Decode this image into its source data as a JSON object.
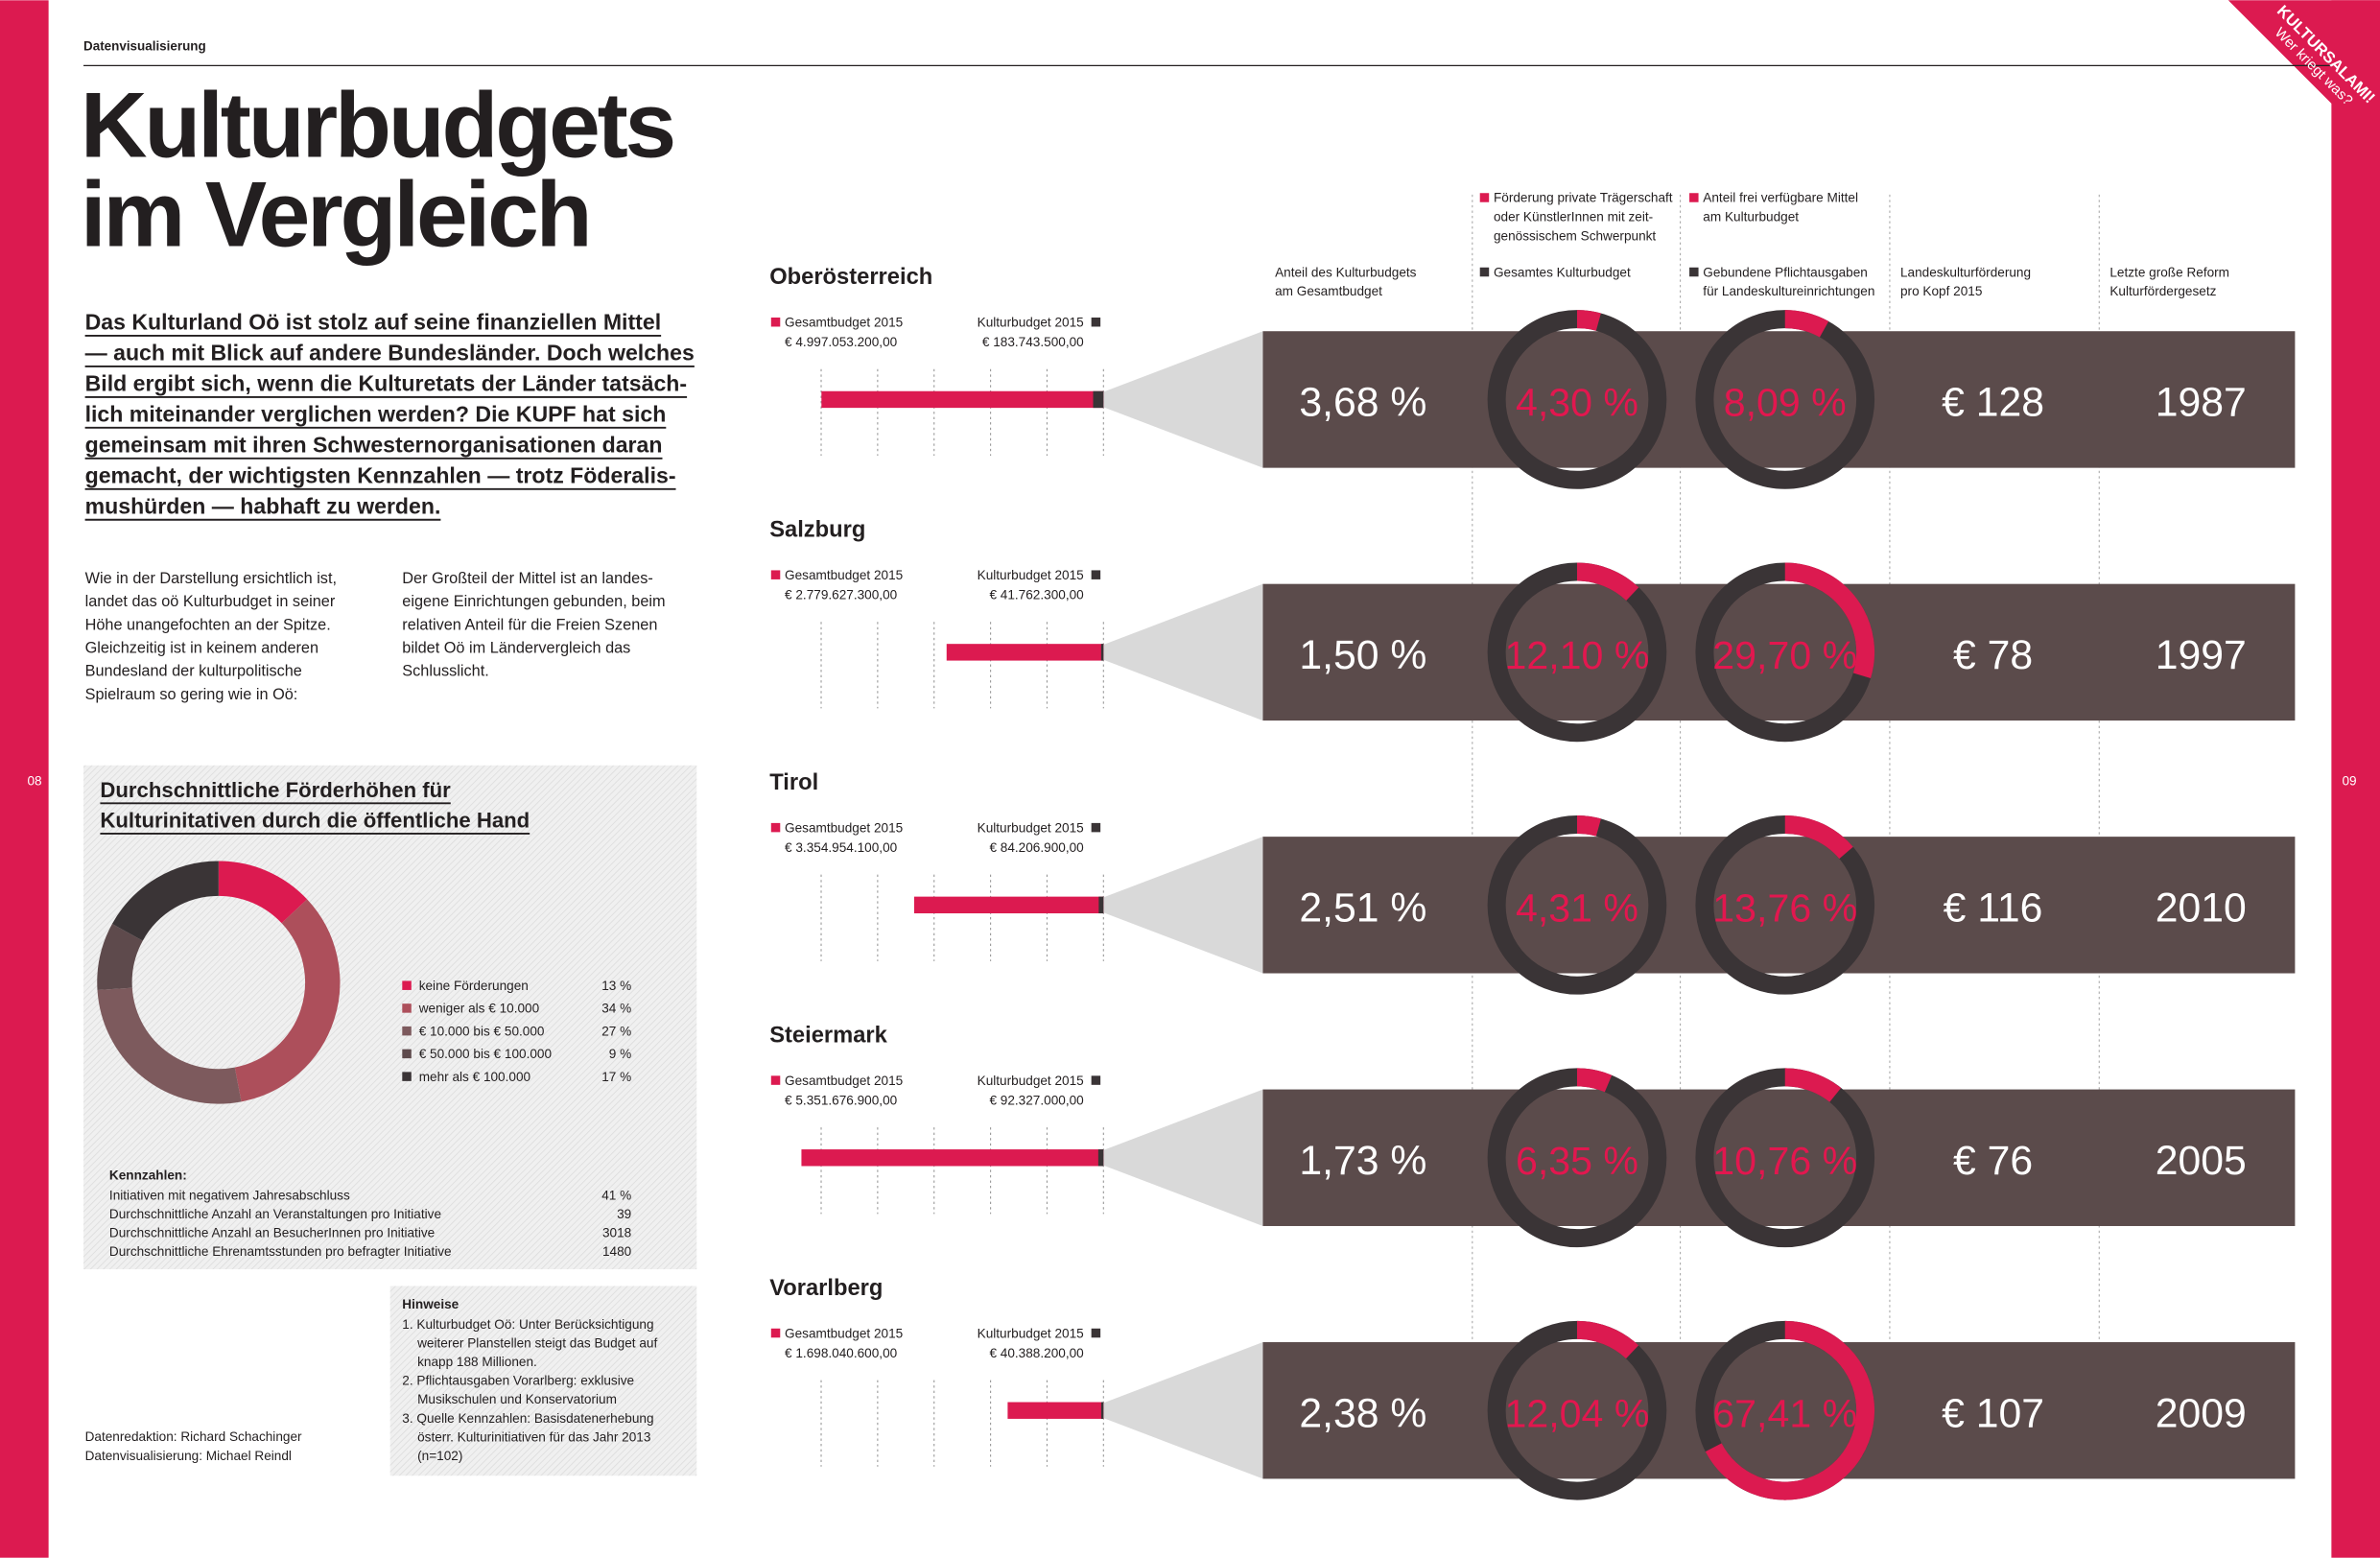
{
  "header": {
    "section": "Datenvisualisierung",
    "title_lines": [
      "Kulturbudgets",
      "im Vergleich"
    ],
    "badge_lines": [
      "KULTURSALAMI!",
      "Wer kriegt was?"
    ],
    "page_numbers": [
      "08",
      "09"
    ]
  },
  "intro_lines": [
    "Das Kulturland Oö ist stolz auf seine finanziellen Mittel",
    "— auch mit Blick auf andere Bundesländer. Doch welches",
    "Bild ergibt sich, wenn die Kulturetats der Länder tatsäch-",
    "lich miteinander verglichen werden? Die KUPF hat sich",
    "gemeinsam mit ihren Schwesternorganisationen daran",
    "gemacht, der wichtigsten Kennzahlen — trotz Föderalis-",
    "mushürden — habhaft zu werden."
  ],
  "columns": [
    [
      "Wie in der Darstellung ersichtlich ist,",
      "landet das oö Kulturbudget in seiner",
      "Höhe unangefochten an der Spitze.",
      "Gleichzeitig ist in keinem anderen",
      "Bundesland der kulturpolitische",
      "Spielraum so gering wie in Oö:"
    ],
    [
      "Der Großteil der Mittel ist an landes-",
      "eigene Einrichtungen gebunden, beim",
      "relativen Anteil für die Freien Szenen",
      "bildet Oö im Ländervergleich das",
      "Schlusslicht."
    ]
  ],
  "chart_data": {
    "type": "pie",
    "donut": true,
    "title_lines": [
      "Durchschnittliche Förderhöhen für",
      "Kulturinitativen durch die öffentliche Hand"
    ],
    "categories": [
      "keine Förderungen",
      "weniger als € 10.000",
      "€ 10.000 bis € 50.000",
      "€ 50.000 bis € 100.000",
      "mehr als € 100.000"
    ],
    "values": [
      13,
      34,
      27,
      9,
      17
    ],
    "value_labels": [
      "13 %",
      "34 %",
      "27 %",
      "9 %",
      "17 %"
    ],
    "colors": [
      "#dc1a50",
      "#ad4f5b",
      "#7d5a5d",
      "#5e4a4c",
      "#3a3436"
    ]
  },
  "kennzahlen": {
    "title": "Kennzahlen:",
    "rows": [
      [
        "Initiativen mit negativem Jahresabschluss",
        "41 %"
      ],
      [
        "Durchschnittliche Anzahl an Veranstaltungen pro Initiative",
        "39"
      ],
      [
        "Durchschnittliche Anzahl an BesucherInnen pro Initiative",
        "3018"
      ],
      [
        "Durchschnittliche Ehrenamtsstunden pro befragter Initiative",
        "1480"
      ]
    ]
  },
  "hinweise": {
    "title": "Hinweise",
    "items": [
      [
        "1. Kulturbudget Oö: Unter Berücksichtigung",
        "weiterer Planstellen steigt das Budget auf",
        "knapp 188 Millionen."
      ],
      [
        "2. Pflichtausgaben Vorarlberg: exklusive",
        "Musikschulen und Konservatorium"
      ],
      [
        "3. Quelle Kennzahlen: Basisdatenerhebung",
        "österr. Kulturinitiativen für das Jahr 2013",
        "(n=102)"
      ]
    ]
  },
  "credits": [
    "Datenredaktion: Richard Schachinger",
    "Datenvisualisierung: Michael Reindl"
  ],
  "comparison": {
    "pink": "#dc1a50",
    "dark": "#3a3436",
    "band_color": "#5b4b4b",
    "upper_headers": [
      {
        "lines": [
          "Förderung private Trägerschaft",
          "oder KünstlerInnen mit zeit-",
          "genössischem Schwerpunkt"
        ],
        "marker": "#dc1a50"
      },
      {
        "lines": [
          "Anteil frei verfügbare Mittel",
          "am Kulturbudget"
        ],
        "marker": "#dc1a50"
      }
    ],
    "lower_headers": [
      {
        "lines": [
          "Anteil des Kulturbudgets",
          "am Gesamtbudget"
        ]
      },
      {
        "lines": [
          "Gesamtes Kulturbudget"
        ],
        "marker": "#3a3436"
      },
      {
        "lines": [
          "Gebundene Pflichtausgaben",
          "für Landeskultureinrichtungen"
        ],
        "marker": "#3a3436"
      },
      {
        "lines": [
          "Landeskulturförderung",
          "pro Kopf 2015"
        ]
      },
      {
        "lines": [
          "Letzte große Reform",
          "Kulturfördergesetz"
        ]
      }
    ],
    "gesamt_title": "Gesamtbudget 2015",
    "kultur_title": "Kulturbudget 2015",
    "rows": [
      {
        "region": "Oberösterreich",
        "gesamt": 4997053200,
        "gesamt_label": "€ 4.997.053.200,00",
        "kultur": 183743500,
        "kultur_label": "€ 183.743.500,00",
        "anteil": 3.68,
        "anteil_label": "3,68 %",
        "private": 4.3,
        "private_label": "4,30 %",
        "free": 8.09,
        "free_label": "8,09 %",
        "pro_kopf": "€ 128",
        "reform": "1987"
      },
      {
        "region": "Salzburg",
        "gesamt": 2779627300,
        "gesamt_label": "€ 2.779.627.300,00",
        "kultur": 41762300,
        "kultur_label": "€ 41.762.300,00",
        "anteil": 1.5,
        "anteil_label": "1,50 %",
        "private": 12.1,
        "private_label": "12,10 %",
        "free": 29.7,
        "free_label": "29,70 %",
        "pro_kopf": "€ 78",
        "reform": "1997"
      },
      {
        "region": "Tirol",
        "gesamt": 3354954100,
        "gesamt_label": "€ 3.354.954.100,00",
        "kultur": 84206900,
        "kultur_label": "€ 84.206.900,00",
        "anteil": 2.51,
        "anteil_label": "2,51 %",
        "private": 4.31,
        "private_label": "4,31 %",
        "free": 13.76,
        "free_label": "13,76 %",
        "pro_kopf": "€ 116",
        "reform": "2010"
      },
      {
        "region": "Steiermark",
        "gesamt": 5351676900,
        "gesamt_label": "€ 5.351.676.900,00",
        "kultur": 92327000,
        "kultur_label": "€ 92.327.000,00",
        "anteil": 1.73,
        "anteil_label": "1,73 %",
        "private": 6.35,
        "private_label": "6,35 %",
        "free": 10.76,
        "free_label": "10,76 %",
        "pro_kopf": "€ 76",
        "reform": "2005"
      },
      {
        "region": "Vorarlberg",
        "gesamt": 1698040600,
        "gesamt_label": "€ 1.698.040.600,00",
        "kultur": 40388200,
        "kultur_label": "€ 40.388.200,00",
        "anteil": 2.38,
        "anteil_label": "2,38 %",
        "private": 12.04,
        "private_label": "12,04 %",
        "free": 67.41,
        "free_label": "67,41 %",
        "pro_kopf": "€ 107",
        "reform": "2009"
      }
    ]
  }
}
